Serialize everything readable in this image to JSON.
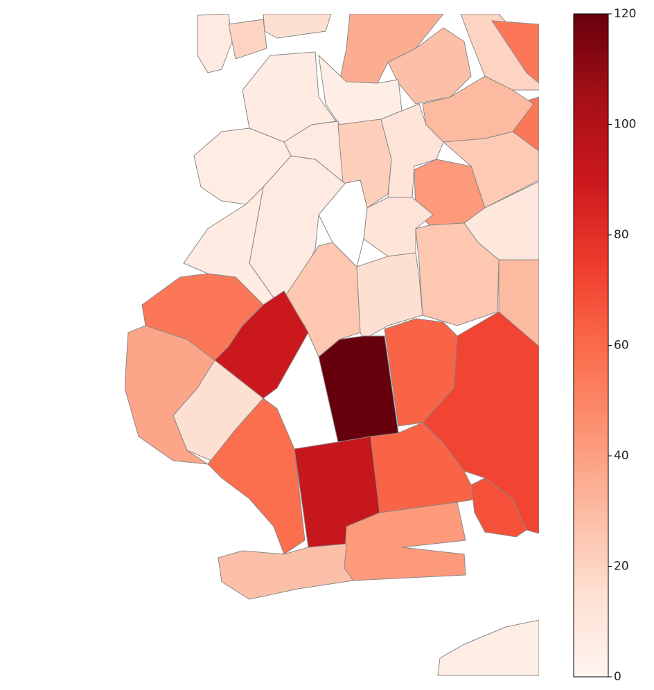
{
  "chart_data": {
    "type": "choropleth",
    "values": [
      8,
      20,
      15,
      35,
      28,
      20,
      55,
      55,
      30,
      5,
      7,
      8,
      22,
      12,
      24,
      42,
      10,
      6,
      null,
      12,
      8,
      7,
      25,
      30,
      25,
      15,
      55,
      90,
      120,
      62,
      72,
      38,
      15,
      58,
      92,
      62,
      42,
      68,
      28,
      5
    ],
    "colormap": [
      "#fff5f0",
      "#fee0d2",
      "#fcbba1",
      "#fc9272",
      "#fb6a4a",
      "#ef3b2c",
      "#cb181d",
      "#a50f15",
      "#67000d"
    ],
    "clim": [
      0,
      120
    ],
    "cticks": [
      0,
      20,
      40,
      60,
      80,
      100,
      120
    ]
  }
}
